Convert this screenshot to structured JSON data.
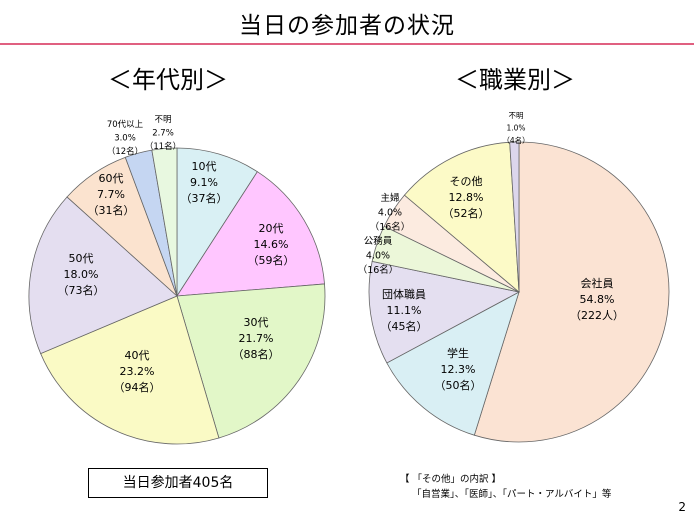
{
  "title": "当日の参加者の状況",
  "page_number": "2",
  "total_label": "当日参加者405名",
  "note": {
    "heading": "【 「その他」の内訳 】",
    "body": "「自営業」、「医師」、「パート・アルバイト」等"
  },
  "chart_data": [
    {
      "type": "pie",
      "title": "＜年代別＞",
      "slices": [
        {
          "label": "10代",
          "percent": "9.1%",
          "count": "（37名）",
          "value": 37,
          "color": "#d9f0f4"
        },
        {
          "label": "20代",
          "percent": "14.6%",
          "count": "（59名）",
          "value": 59,
          "color": "#ffc6ff"
        },
        {
          "label": "30代",
          "percent": "21.7%",
          "count": "（88名）",
          "value": 88,
          "color": "#e2f7c8"
        },
        {
          "label": "40代",
          "percent": "23.2%",
          "count": "（94名）",
          "value": 94,
          "color": "#fafac5"
        },
        {
          "label": "50代",
          "percent": "18.0%",
          "count": "（73名）",
          "value": 73,
          "color": "#e4def0"
        },
        {
          "label": "60代",
          "percent": "7.7%",
          "count": "（31名）",
          "value": 31,
          "color": "#fbe3cf"
        },
        {
          "label": "70代以上",
          "percent": "3.0%",
          "count": "（12名）",
          "value": 12,
          "color": "#c5d6f2"
        },
        {
          "label": "不明",
          "percent": "2.7%",
          "count": "（11名）",
          "value": 11,
          "color": "#e8f8e0"
        }
      ]
    },
    {
      "type": "pie",
      "title": "＜職業別＞",
      "slices": [
        {
          "label": "会社員",
          "percent": "54.8%",
          "count": "（222人）",
          "value": 222,
          "color": "#fbe3d3"
        },
        {
          "label": "学生",
          "percent": "12.3%",
          "count": "（50名）",
          "value": 50,
          "color": "#d9eff4"
        },
        {
          "label": "団体職員",
          "percent": "11.1%",
          "count": "（45名）",
          "value": 45,
          "color": "#e4dff0"
        },
        {
          "label": "公務員",
          "percent": "4.0%",
          "count": "（16名）",
          "value": 16,
          "color": "#ecf7d9"
        },
        {
          "label": "主婦",
          "percent": "4.0%",
          "count": "（16名）",
          "value": 16,
          "color": "#fcebe0"
        },
        {
          "label": "その他",
          "percent": "12.8%",
          "count": "（52名）",
          "value": 52,
          "color": "#fcfac7"
        },
        {
          "label": "不明",
          "percent": "1.0%",
          "count": "（4名）",
          "value": 4,
          "color": "#dcd6ec"
        }
      ]
    }
  ]
}
